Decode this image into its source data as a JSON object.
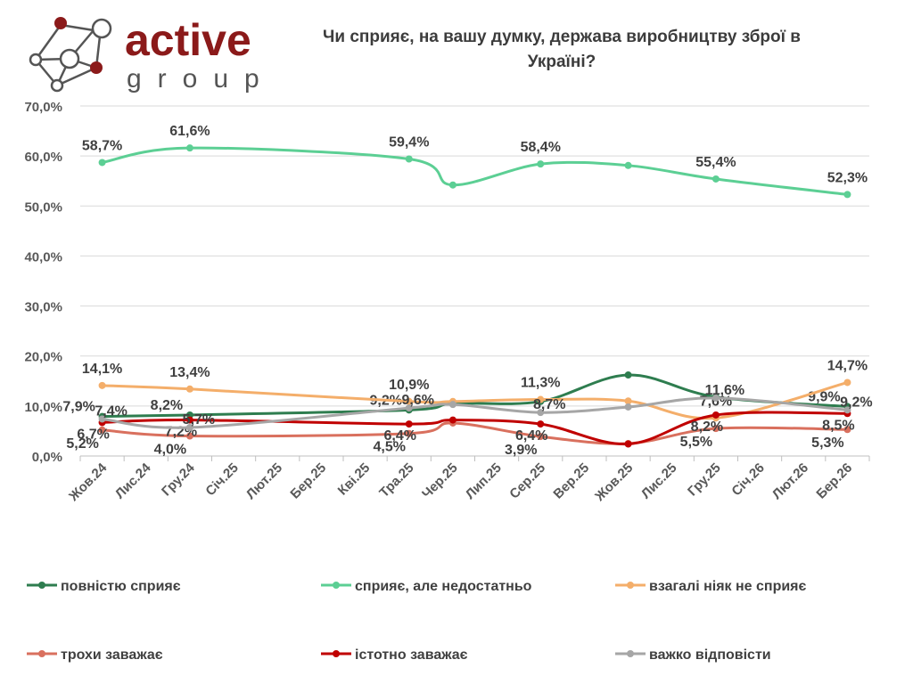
{
  "logo": {
    "word1": "active",
    "word2": "group"
  },
  "chart_data": {
    "type": "line",
    "title": "Чи сприяє, на вашу думку, держава виробництву зброї в Україні?",
    "categories": [
      "Жов.24",
      "Лис.24",
      "Гру.24",
      "Січ.25",
      "Лют.25",
      "Бер.25",
      "Кві.25",
      "Тра.25",
      "Чер.25",
      "Лип.25",
      "Сер.25",
      "Вер.25",
      "Жов.25",
      "Лис.25",
      "Гру.25",
      "Січ.26",
      "Лют.26",
      "Бер.26"
    ],
    "ylim": [
      0,
      70
    ],
    "yticks": [
      "0,0%",
      "10,0%",
      "20,0%",
      "30,0%",
      "40,0%",
      "50,0%",
      "60,0%",
      "70,0%"
    ],
    "grid": true,
    "legend_position": "bottom",
    "series": [
      {
        "name": "повністю сприяє",
        "color": "#2e7d4f",
        "points": [
          [
            0,
            7.9
          ],
          [
            2,
            8.2
          ],
          [
            7,
            9.2
          ],
          [
            8,
            10.5
          ],
          [
            10,
            10.9
          ],
          [
            12,
            16.2
          ],
          [
            14,
            11.8
          ],
          [
            17,
            9.9
          ]
        ],
        "labels": [
          "7,9%",
          "8,2%",
          "9,2%",
          "",
          "",
          "",
          "",
          "9,9%"
        ]
      },
      {
        "name": "сприяє, але недостатньо",
        "color": "#5ccf94",
        "points": [
          [
            0,
            58.7
          ],
          [
            2,
            61.6
          ],
          [
            7,
            59.4
          ],
          [
            8,
            54.2
          ],
          [
            10,
            58.4
          ],
          [
            12,
            58.1
          ],
          [
            14,
            55.4
          ],
          [
            17,
            52.3
          ]
        ],
        "labels": [
          "58,7%",
          "61,6%",
          "59,4%",
          "",
          "58,4%",
          "",
          "55,4%",
          "52,3%"
        ]
      },
      {
        "name": "взагалі ніяк не сприяє",
        "color": "#f4ae6a",
        "points": [
          [
            0,
            14.1
          ],
          [
            2,
            13.4
          ],
          [
            7,
            10.9
          ],
          [
            8,
            10.9
          ],
          [
            10,
            11.3
          ],
          [
            12,
            11.0
          ],
          [
            14,
            7.6
          ],
          [
            17,
            14.7
          ]
        ],
        "labels": [
          "14,1%",
          "13,4%",
          "10,9%",
          "",
          "11,3%",
          "",
          "7,6%",
          "14,7%"
        ]
      },
      {
        "name": "трохи заважає",
        "color": "#d9705e",
        "points": [
          [
            0,
            5.2
          ],
          [
            2,
            4.0
          ],
          [
            7,
            4.5
          ],
          [
            8,
            6.6
          ],
          [
            10,
            3.9
          ],
          [
            12,
            2.5
          ],
          [
            14,
            5.5
          ],
          [
            17,
            5.3
          ]
        ],
        "labels": [
          "5,2%",
          "4,0%",
          "4,5%",
          "",
          "3,9%",
          "",
          "5,5%",
          "5,3%"
        ]
      },
      {
        "name": "істотно заважає",
        "color": "#c00000",
        "points": [
          [
            0,
            6.7
          ],
          [
            2,
            7.2
          ],
          [
            7,
            6.4
          ],
          [
            8,
            7.2
          ],
          [
            10,
            6.4
          ],
          [
            12,
            2.4
          ],
          [
            14,
            8.2
          ],
          [
            17,
            8.5
          ]
        ],
        "labels": [
          "6,7%",
          "7,2%",
          "6,4%",
          "",
          "6,4%",
          "",
          "8,2%",
          "8,5%"
        ]
      },
      {
        "name": "важко відповісти",
        "color": "#a6a6a6",
        "points": [
          [
            0,
            7.4
          ],
          [
            2,
            5.7
          ],
          [
            7,
            9.6
          ],
          [
            8,
            10.3
          ],
          [
            10,
            8.7
          ],
          [
            12,
            9.8
          ],
          [
            14,
            11.6
          ],
          [
            17,
            9.2
          ]
        ],
        "labels": [
          "7,4%",
          "5,7%",
          "9,6%",
          "",
          "8,7%",
          "",
          "11,6%",
          "9,2%"
        ]
      }
    ]
  }
}
